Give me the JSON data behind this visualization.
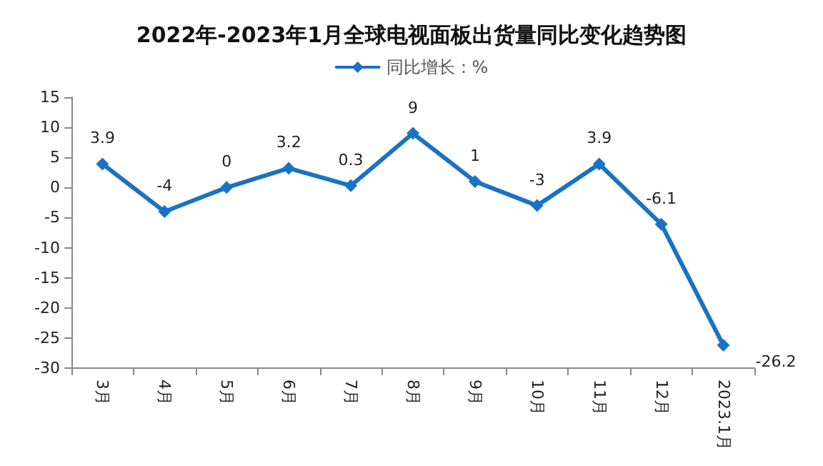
{
  "chart_data": {
    "type": "line",
    "title": "2022年-2023年1月全球电视面板出货量同比变化趋势图",
    "categories": [
      "3月",
      "4月",
      "5月",
      "6月",
      "7月",
      "8月",
      "9月",
      "10月",
      "11月",
      "12月",
      "2023.1月"
    ],
    "series": [
      {
        "name": "同比增长：%",
        "color": "#1a72c4",
        "values": [
          3.9,
          -4,
          0,
          3.2,
          0.3,
          9,
          1,
          -3,
          3.9,
          -6.1,
          -26.2
        ]
      }
    ],
    "ylim": [
      -30,
      15
    ],
    "yticks": [
      -30,
      -25,
      -20,
      -15,
      -10,
      -5,
      0,
      5,
      10,
      15
    ],
    "data_labels": true,
    "legend": "top",
    "grid": false,
    "marker": "diamond",
    "line_style": "solid"
  }
}
